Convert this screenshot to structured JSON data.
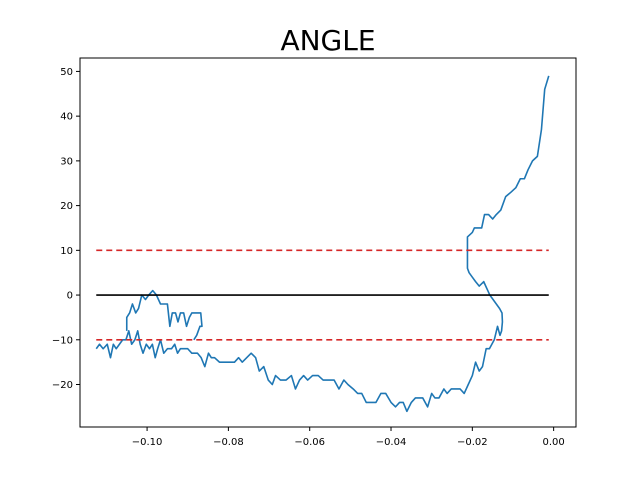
{
  "chart_data": {
    "type": "line",
    "title": "ANGLE",
    "xlabel": "",
    "ylabel": "",
    "xlim": [
      -0.1165,
      0.0055
    ],
    "ylim": [
      -29.5,
      53
    ],
    "x_ticks": [
      -0.1,
      -0.08,
      -0.06,
      -0.04,
      -0.02,
      0.0
    ],
    "x_tick_labels": [
      "−0.10",
      "−0.08",
      "−0.06",
      "−0.04",
      "−0.02",
      "0.00"
    ],
    "y_ticks": [
      -20,
      -10,
      0,
      10,
      20,
      30,
      40,
      50
    ],
    "y_tick_labels": [
      "−20",
      "−10",
      "0",
      "10",
      "20",
      "30",
      "40",
      "50"
    ],
    "grid": false,
    "legend": "none",
    "series": [
      {
        "color": "#1f77b4",
        "style": "solid",
        "points": [
          [
            -0.1125,
            -12
          ],
          [
            -0.1117,
            -11
          ],
          [
            -0.1108,
            -12
          ],
          [
            -0.1098,
            -11
          ],
          [
            -0.109,
            -14
          ],
          [
            -0.1083,
            -11
          ],
          [
            -0.1076,
            -12
          ],
          [
            -0.1068,
            -11
          ],
          [
            -0.106,
            -10
          ],
          [
            -0.1052,
            -10
          ],
          [
            -0.1045,
            -8
          ],
          [
            -0.1038,
            -11
          ],
          [
            -0.103,
            -10
          ],
          [
            -0.1023,
            -8
          ],
          [
            -0.1017,
            -11
          ],
          [
            -0.101,
            -13
          ],
          [
            -0.1002,
            -11
          ],
          [
            -0.0994,
            -12
          ],
          [
            -0.0987,
            -11
          ],
          [
            -0.098,
            -14
          ],
          [
            -0.0974,
            -12
          ],
          [
            -0.0967,
            -10
          ],
          [
            -0.0959,
            -13
          ],
          [
            -0.095,
            -12
          ],
          [
            -0.094,
            -12
          ],
          [
            -0.0932,
            -11
          ],
          [
            -0.0925,
            -13
          ],
          [
            -0.0918,
            -12
          ],
          [
            -0.091,
            -12
          ],
          [
            -0.09,
            -12
          ],
          [
            -0.089,
            -13
          ],
          [
            -0.0876,
            -13
          ],
          [
            -0.0867,
            -14
          ],
          [
            -0.0858,
            -16
          ],
          [
            -0.0849,
            -13
          ],
          [
            -0.0842,
            -14
          ],
          [
            -0.0834,
            -14
          ],
          [
            -0.0822,
            -15
          ],
          [
            -0.08,
            -15
          ],
          [
            -0.0785,
            -15
          ],
          [
            -0.0775,
            -14
          ],
          [
            -0.0766,
            -15
          ],
          [
            -0.0755,
            -14
          ],
          [
            -0.0744,
            -13
          ],
          [
            -0.0733,
            -14
          ],
          [
            -0.0724,
            -17
          ],
          [
            -0.0713,
            -16
          ],
          [
            -0.0702,
            -19
          ],
          [
            -0.0692,
            -20
          ],
          [
            -0.0684,
            -18
          ],
          [
            -0.0672,
            -19
          ],
          [
            -0.0658,
            -19
          ],
          [
            -0.0645,
            -18
          ],
          [
            -0.0635,
            -21
          ],
          [
            -0.0625,
            -19
          ],
          [
            -0.0615,
            -18
          ],
          [
            -0.0605,
            -19
          ],
          [
            -0.0593,
            -18
          ],
          [
            -0.0579,
            -18
          ],
          [
            -0.0567,
            -19
          ],
          [
            -0.0553,
            -19
          ],
          [
            -0.054,
            -19
          ],
          [
            -0.0528,
            -21
          ],
          [
            -0.0516,
            -19
          ],
          [
            -0.0506,
            -20
          ],
          [
            -0.0493,
            -21
          ],
          [
            -0.0482,
            -22
          ],
          [
            -0.0472,
            -22
          ],
          [
            -0.0461,
            -24
          ],
          [
            -0.0448,
            -24
          ],
          [
            -0.0437,
            -24
          ],
          [
            -0.0425,
            -22
          ],
          [
            -0.0413,
            -22
          ],
          [
            -0.04,
            -24
          ],
          [
            -0.0389,
            -25
          ],
          [
            -0.0379,
            -24
          ],
          [
            -0.037,
            -24
          ],
          [
            -0.0361,
            -26
          ],
          [
            -0.035,
            -24
          ],
          [
            -0.034,
            -23
          ],
          [
            -0.0332,
            -23
          ],
          [
            -0.0322,
            -23
          ],
          [
            -0.031,
            -25
          ],
          [
            -0.03,
            -22
          ],
          [
            -0.0292,
            -23
          ],
          [
            -0.0282,
            -23
          ],
          [
            -0.027,
            -21
          ],
          [
            -0.0262,
            -22
          ],
          [
            -0.0252,
            -21
          ],
          [
            -0.0242,
            -21
          ],
          [
            -0.023,
            -21
          ],
          [
            -0.022,
            -22
          ],
          [
            -0.021,
            -20
          ],
          [
            -0.02,
            -18
          ],
          [
            -0.0192,
            -15
          ],
          [
            -0.0183,
            -17
          ],
          [
            -0.0175,
            -16
          ],
          [
            -0.0166,
            -12
          ],
          [
            -0.0158,
            -12
          ],
          [
            -0.0152,
            -11
          ],
          [
            -0.0146,
            -10
          ],
          [
            -0.0138,
            -7
          ],
          [
            -0.0132,
            -9
          ],
          [
            -0.0128,
            -8
          ],
          [
            -0.0126,
            -6
          ],
          [
            -0.0127,
            -4
          ],
          [
            -0.0133,
            -3
          ],
          [
            -0.0141,
            -2
          ],
          [
            -0.0149,
            -1
          ],
          [
            -0.0157,
            0
          ],
          [
            -0.0162,
            1
          ],
          [
            -0.0167,
            2
          ],
          [
            -0.0172,
            3
          ],
          [
            -0.0183,
            2
          ],
          [
            -0.0192,
            3
          ],
          [
            -0.02,
            4
          ],
          [
            -0.0208,
            5
          ],
          [
            -0.0212,
            6
          ],
          [
            -0.0212,
            10
          ],
          [
            -0.0212,
            13
          ],
          [
            -0.02,
            14
          ],
          [
            -0.0195,
            15
          ],
          [
            -0.0183,
            15
          ],
          [
            -0.0177,
            15
          ],
          [
            -0.017,
            18
          ],
          [
            -0.016,
            18
          ],
          [
            -0.015,
            17
          ],
          [
            -0.0141,
            18
          ],
          [
            -0.013,
            19
          ],
          [
            -0.0118,
            22
          ],
          [
            -0.0105,
            23
          ],
          [
            -0.0093,
            24
          ],
          [
            -0.0082,
            26
          ],
          [
            -0.0072,
            26
          ],
          [
            -0.0063,
            28
          ],
          [
            -0.0052,
            30
          ],
          [
            -0.004,
            31
          ],
          [
            -0.003,
            37
          ],
          [
            -0.0022,
            46
          ],
          [
            -0.0012,
            49
          ]
        ]
      },
      {
        "color": "#1f77b4",
        "style": "solid",
        "points": [
          [
            -0.105,
            -8
          ],
          [
            -0.105,
            -5
          ],
          [
            -0.1043,
            -4
          ],
          [
            -0.1036,
            -2
          ],
          [
            -0.1028,
            -4
          ],
          [
            -0.1021,
            -3
          ],
          [
            -0.1013,
            0
          ],
          [
            -0.1004,
            -1
          ],
          [
            -0.0996,
            0
          ],
          [
            -0.0986,
            1
          ],
          [
            -0.0977,
            0
          ],
          [
            -0.0967,
            -2
          ],
          [
            -0.0958,
            -2
          ],
          [
            -0.095,
            -2
          ],
          [
            -0.0944,
            -7
          ],
          [
            -0.0938,
            -4
          ],
          [
            -0.093,
            -4
          ],
          [
            -0.0924,
            -6
          ],
          [
            -0.0918,
            -4
          ],
          [
            -0.091,
            -4
          ],
          [
            -0.0903,
            -7
          ],
          [
            -0.0896,
            -5
          ],
          [
            -0.089,
            -4
          ],
          [
            -0.0882,
            -4
          ],
          [
            -0.0874,
            -4
          ],
          [
            -0.0868,
            -4
          ],
          [
            -0.0865,
            -7
          ],
          [
            -0.087,
            -7
          ],
          [
            -0.0878,
            -9
          ],
          [
            -0.0885,
            -10
          ]
        ]
      },
      {
        "color": "#d62728",
        "style": "dashed",
        "points": [
          [
            -0.1125,
            10
          ],
          [
            -0.0012,
            10
          ]
        ]
      },
      {
        "color": "#d62728",
        "style": "dashed",
        "points": [
          [
            -0.1125,
            -10
          ],
          [
            -0.0012,
            -10
          ]
        ]
      },
      {
        "color": "#000000",
        "style": "solid",
        "points": [
          [
            -0.1125,
            0
          ],
          [
            -0.0012,
            0
          ]
        ]
      }
    ]
  }
}
